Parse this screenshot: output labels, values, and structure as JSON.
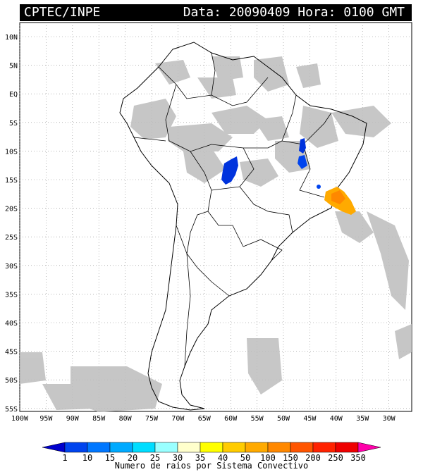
{
  "header": {
    "source": "CPTEC/INPE",
    "datetime": "Data: 20090409 Hora: 0100 GMT"
  },
  "lat_labels": [
    "10N",
    "5N",
    "EQ",
    "5S",
    "10S",
    "15S",
    "20S",
    "25S",
    "30S",
    "35S",
    "40S",
    "45S",
    "50S",
    "55S"
  ],
  "lon_labels": [
    "100W",
    "95W",
    "90W",
    "85W",
    "80W",
    "75W",
    "70W",
    "65W",
    "60W",
    "55W",
    "50W",
    "45W",
    "40W",
    "35W",
    "30W"
  ],
  "legend": {
    "values": [
      "1",
      "10",
      "15",
      "20",
      "25",
      "30",
      "35",
      "40",
      "50",
      "100",
      "150",
      "200",
      "250",
      "350"
    ],
    "colors": [
      "#0000cc",
      "#0044ee",
      "#0077ff",
      "#00aaff",
      "#00ddff",
      "#99ffff",
      "#ffffcc",
      "#ffff00",
      "#ffcc00",
      "#ffaa00",
      "#ff8800",
      "#ff5500",
      "#ff2200",
      "#ee0000",
      "#ff00aa"
    ],
    "title": "Numero de raios por Sistema Convectivo"
  }
}
